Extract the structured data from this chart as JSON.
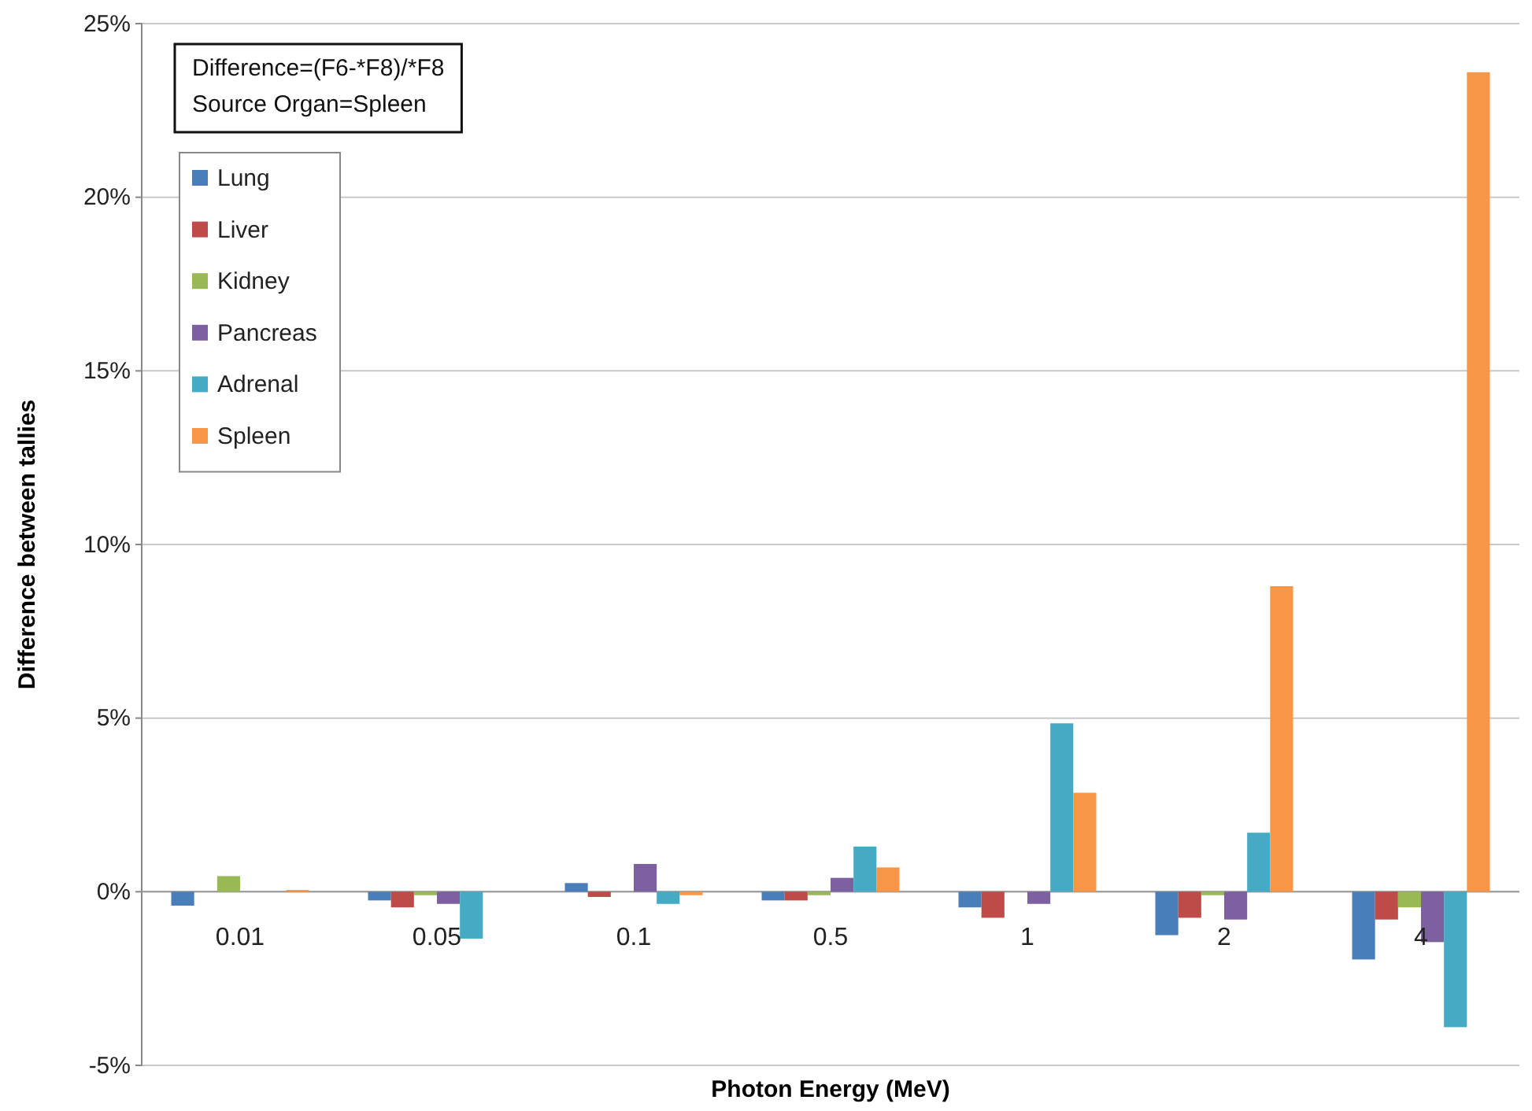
{
  "chart_data": {
    "type": "bar",
    "xlabel": "Photon Energy (MeV)",
    "ylabel": "Difference between tallies",
    "categories": [
      "0.01",
      "0.05",
      "0.1",
      "0.5",
      "1",
      "2",
      "4"
    ],
    "series": [
      {
        "name": "Lung",
        "color": "#4a7ebb",
        "values": [
          -0.4,
          -0.25,
          0.25,
          -0.25,
          -0.45,
          -1.25,
          -1.95
        ]
      },
      {
        "name": "Liver",
        "color": "#be4b48",
        "values": [
          0,
          -0.45,
          -0.15,
          -0.25,
          -0.75,
          -0.75,
          -0.8
        ]
      },
      {
        "name": "Kidney",
        "color": "#98b954",
        "values": [
          0.45,
          -0.1,
          0,
          -0.1,
          0,
          -0.1,
          -0.45
        ]
      },
      {
        "name": "Pancreas",
        "color": "#7d60a0",
        "values": [
          0,
          -0.35,
          0.8,
          0.4,
          -0.35,
          -0.8,
          -1.45
        ]
      },
      {
        "name": "Adrenal",
        "color": "#46aac5",
        "values": [
          0,
          -1.35,
          -0.35,
          1.3,
          4.85,
          1.7,
          -3.9
        ]
      },
      {
        "name": "Spleen",
        "color": "#f79646",
        "values": [
          0.05,
          0,
          -0.1,
          0.7,
          2.85,
          8.8,
          23.6
        ]
      }
    ],
    "ylim": [
      -5,
      25
    ],
    "yticks": [
      {
        "value": -5,
        "label": "-5%"
      },
      {
        "value": 0,
        "label": "0%"
      },
      {
        "value": 5,
        "label": "5%"
      },
      {
        "value": 10,
        "label": "10%"
      },
      {
        "value": 15,
        "label": "15%"
      },
      {
        "value": 20,
        "label": "20%"
      },
      {
        "value": 25,
        "label": "25%"
      }
    ],
    "grid": "y",
    "legend": "top left",
    "annotations": [
      "Difference=(F6-*F8)/*F8",
      "Source Organ=Spleen"
    ]
  }
}
